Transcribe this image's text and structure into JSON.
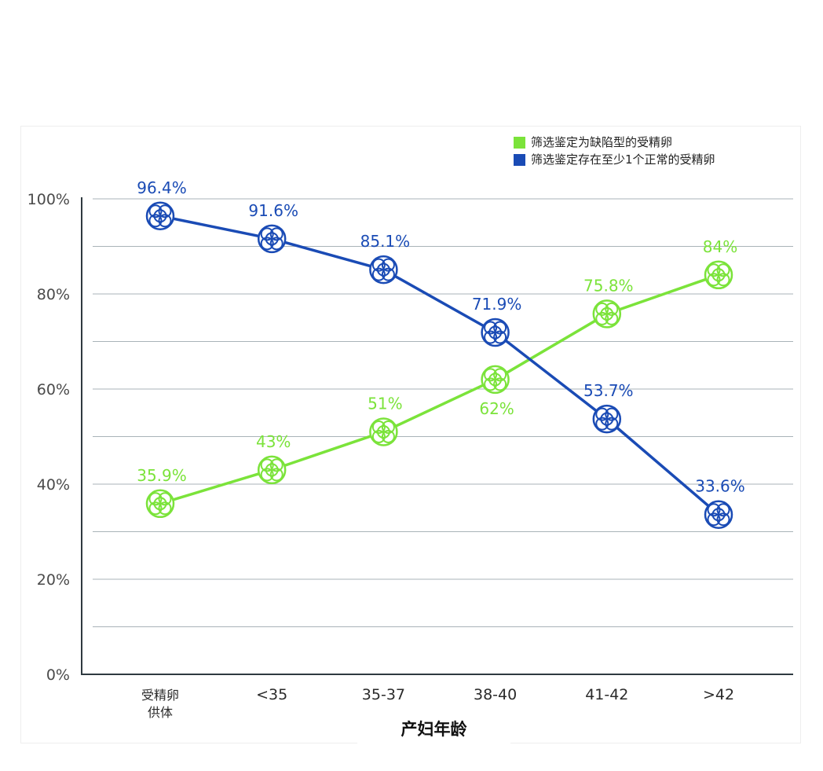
{
  "chart_data": {
    "type": "line",
    "title": "",
    "xlabel": "产妇年龄",
    "ylabel": "",
    "categories": [
      "受精卵\n供体",
      "<35",
      "35-37",
      "38-40",
      "41-42",
      ">42"
    ],
    "ylim": [
      0,
      100
    ],
    "yticks": [
      0,
      20,
      40,
      60,
      80,
      100
    ],
    "ytick_labels": [
      "0%",
      "20%",
      "40%",
      "60%",
      "80%",
      "100%"
    ],
    "grid": true,
    "legend_position": "top-right",
    "series": [
      {
        "name": "筛选鉴定为缺陷型的受精卵",
        "color": "#7be33a",
        "values": [
          35.9,
          43,
          51,
          62,
          75.8,
          84
        ],
        "labels": [
          "35.9%",
          "43%",
          "51%",
          "62%",
          "75.8%",
          "84%"
        ],
        "label_side": [
          "above",
          "above",
          "above",
          "below",
          "above",
          "above"
        ]
      },
      {
        "name": "筛选鉴定存在至少1个正常的受精卵",
        "color": "#1a4bb5",
        "values": [
          96.4,
          91.6,
          85.1,
          71.9,
          53.7,
          33.6
        ],
        "labels": [
          "96.4%",
          "91.6%",
          "85.1%",
          "71.9%",
          "53.7%",
          "33.6%"
        ],
        "label_side": [
          "above",
          "above",
          "above",
          "above",
          "above",
          "above"
        ]
      }
    ]
  },
  "legend": {
    "items": [
      {
        "label": "筛选鉴定为缺陷型的受精卵",
        "color": "#7be33a"
      },
      {
        "label": "筛选鉴定存在至少1个正常的受精卵",
        "color": "#1a4bb5"
      }
    ]
  }
}
